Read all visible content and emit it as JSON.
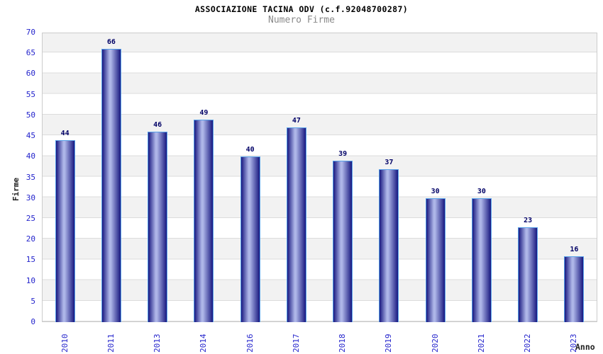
{
  "header": {
    "title": "ASSOCIAZIONE TACINA ODV (c.f.92048700287)",
    "subtitle": "Numero Firme"
  },
  "chart_data": {
    "type": "bar",
    "title": "ASSOCIAZIONE TACINA ODV (c.f.92048700287)",
    "subtitle": "Numero Firme",
    "categories": [
      "2010",
      "2011",
      "2013",
      "2014",
      "2016",
      "2017",
      "2018",
      "2019",
      "2020",
      "2021",
      "2022",
      "2023"
    ],
    "values": [
      44,
      66,
      46,
      49,
      40,
      47,
      39,
      37,
      30,
      30,
      23,
      16
    ],
    "xlabel": "Anno",
    "ylabel": "Firme",
    "ylim": [
      0,
      70
    ],
    "ytick_step": 5,
    "grid": "horizontal-bands-alternating",
    "legend": "none",
    "colors": {
      "bar_dark": "#181880",
      "bar_light": "#aeb6e8",
      "bar_border": "#57a0e8",
      "tick_label": "#2424cc",
      "value_label": "#000066",
      "axis_title": "#222222",
      "title": "#000000",
      "subtitle": "#8a8a8a",
      "band_gray": "#f2f2f2",
      "band_white": "#ffffff",
      "grid_line": "#dcdcdc",
      "plot_border": "#cccccc"
    }
  }
}
